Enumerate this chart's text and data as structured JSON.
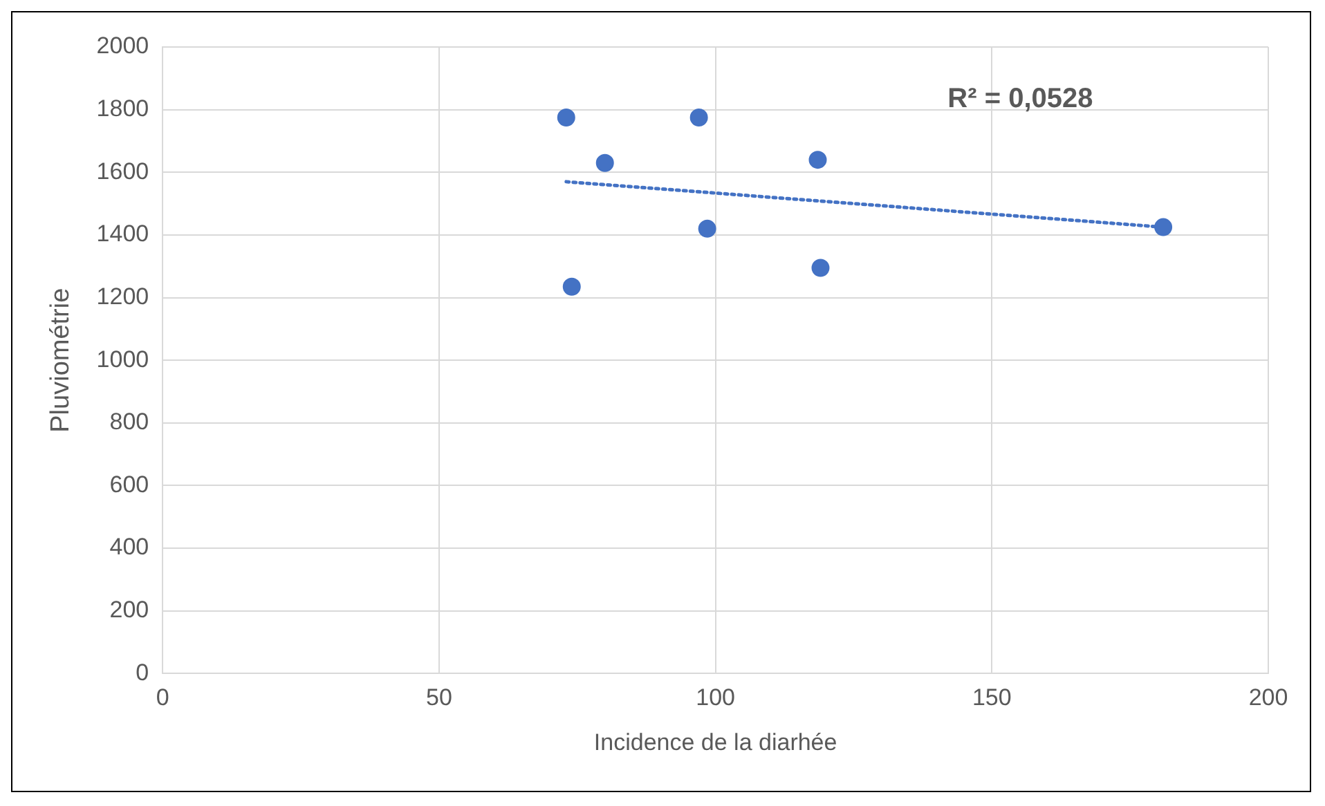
{
  "chart_data": {
    "type": "scatter",
    "xlabel": "Incidence de la diarhée",
    "ylabel": "Pluviométrie",
    "series": [
      {
        "type": "scatter",
        "color": "#4472c4",
        "x": [
          73,
          80,
          74,
          97,
          98.5,
          118.5,
          119,
          181
        ],
        "values": [
          1775,
          1630,
          1235,
          1775,
          1420,
          1640,
          1295,
          1425
        ]
      },
      {
        "type": "line",
        "color": "#4472c4",
        "line_style": "dotted",
        "marker": "none",
        "x": [
          73,
          181
        ],
        "values": [
          1570,
          1425
        ]
      }
    ],
    "annotations": [
      "R² = 0,0528"
    ],
    "xlim": [
      0,
      200
    ],
    "xticks": [
      0,
      50,
      100,
      150,
      200
    ],
    "ylim": [
      0,
      2000
    ],
    "yticks": [
      0,
      200,
      400,
      600,
      800,
      1000,
      1200,
      1400,
      1600,
      1800,
      2000
    ],
    "grid": true,
    "legend": false,
    "marker": "circle"
  }
}
